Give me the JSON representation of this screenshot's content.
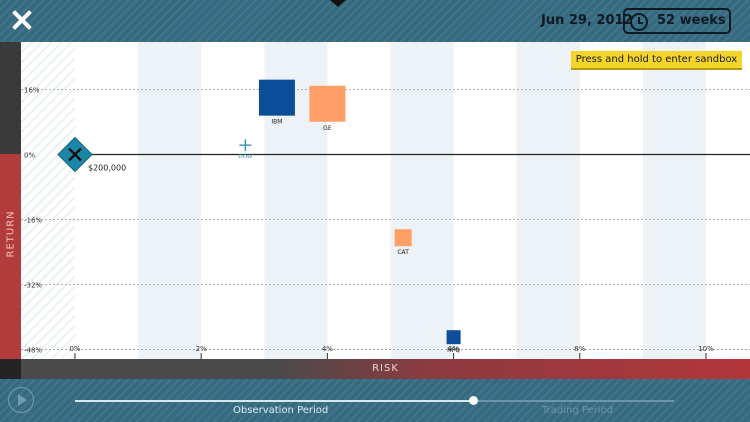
{
  "header": {
    "date": "Jun 29, 2012",
    "duration": "52 weeks"
  },
  "chart_data": {
    "type": "scatter",
    "xlabel": "RISK",
    "ylabel": "RETURN",
    "x_ticks": [
      "0%",
      "2%",
      "4%",
      "6%",
      "8%",
      "10%"
    ],
    "y_ticks": [
      "16%",
      "0%",
      "-16%",
      "-32%",
      "-48%"
    ],
    "xlim": [
      0,
      10
    ],
    "ylim": [
      -48,
      16
    ],
    "portfolio": {
      "label": "$200,000",
      "x": 0,
      "y": 0
    },
    "benchmark": {
      "label": "DOW",
      "x": 2.7,
      "y": 2.3
    },
    "stocks": [
      {
        "name": "IBM",
        "x": 3.2,
        "y": 14,
        "color": "#0c4d97",
        "size": 36
      },
      {
        "name": "GE",
        "x": 4.0,
        "y": 12.5,
        "color": "#ff9e66",
        "size": 36
      },
      {
        "name": "CAT",
        "x": 5.2,
        "y": -20.5,
        "color": "#ff9e66",
        "size": 17
      },
      {
        "name": "HPQ",
        "x": 6.0,
        "y": -45,
        "color": "#0c4d97",
        "size": 14
      }
    ]
  },
  "sandbox_button": "Press and hold to enter sandbox",
  "timeline": {
    "observation_label": "Observation Period",
    "trading_label": "Trading Period",
    "position": 0.67
  }
}
